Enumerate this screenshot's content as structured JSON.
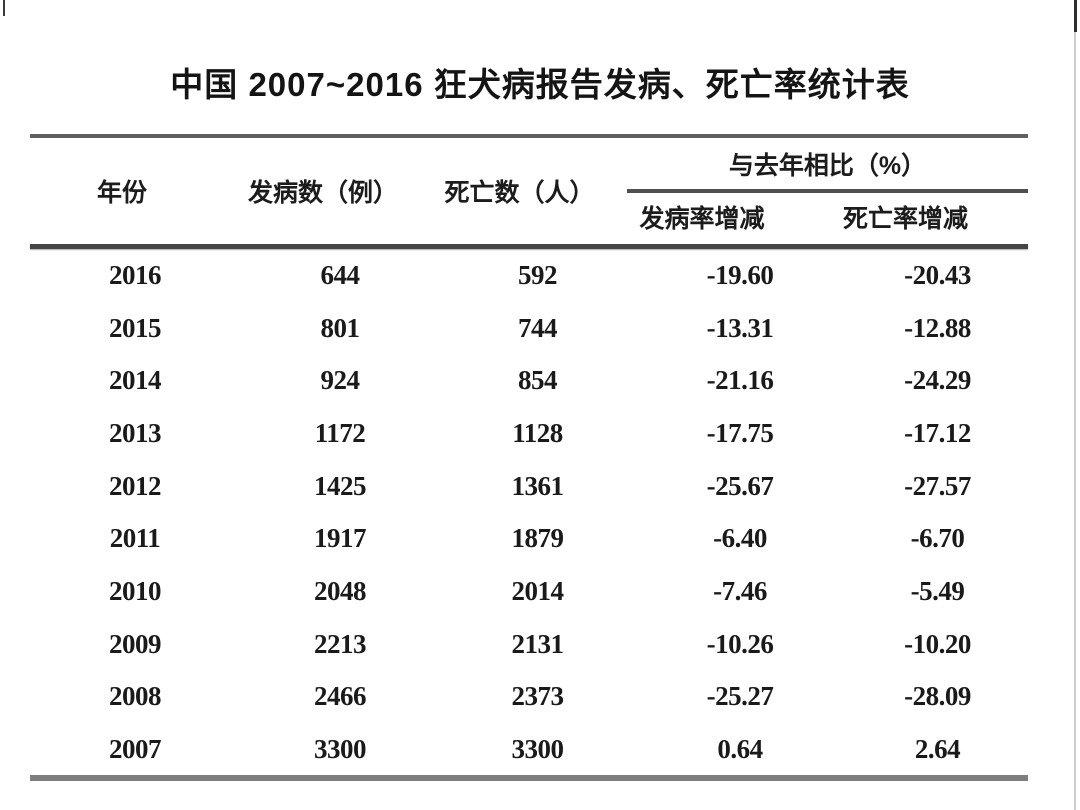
{
  "title": "中国 2007~2016 狂犬病报告发病、死亡率统计表",
  "table": {
    "columns": {
      "year": "年份",
      "cases": "发病数（例）",
      "deaths": "死亡数（人）",
      "compare_group": "与去年相比（%）",
      "incidence_change": "发病率增减",
      "death_change": "死亡率增减"
    },
    "rows": [
      {
        "year": "2016",
        "cases": "644",
        "deaths": "592",
        "incidence_change": "-19.60",
        "death_change": "-20.43"
      },
      {
        "year": "2015",
        "cases": "801",
        "deaths": "744",
        "incidence_change": "-13.31",
        "death_change": "-12.88"
      },
      {
        "year": "2014",
        "cases": "924",
        "deaths": "854",
        "incidence_change": "-21.16",
        "death_change": "-24.29"
      },
      {
        "year": "2013",
        "cases": "1172",
        "deaths": "1128",
        "incidence_change": "-17.75",
        "death_change": "-17.12"
      },
      {
        "year": "2012",
        "cases": "1425",
        "deaths": "1361",
        "incidence_change": "-25.67",
        "death_change": "-27.57"
      },
      {
        "year": "2011",
        "cases": "1917",
        "deaths": "1879",
        "incidence_change": "-6.40",
        "death_change": "-6.70"
      },
      {
        "year": "2010",
        "cases": "2048",
        "deaths": "2014",
        "incidence_change": "-7.46",
        "death_change": "-5.49"
      },
      {
        "year": "2009",
        "cases": "2213",
        "deaths": "2131",
        "incidence_change": "-10.26",
        "death_change": "-10.20"
      },
      {
        "year": "2008",
        "cases": "2466",
        "deaths": "2373",
        "incidence_change": "-25.27",
        "death_change": "-28.09"
      },
      {
        "year": "2007",
        "cases": "3300",
        "deaths": "3300",
        "incidence_change": "0.64",
        "death_change": "2.64"
      }
    ]
  },
  "colors": {
    "background": "#ffffff",
    "text": "#1a1a1a",
    "rule_top": "#5f5f5f",
    "rule_thick": "#454545",
    "rule_bottom": "#7e7e7e"
  }
}
